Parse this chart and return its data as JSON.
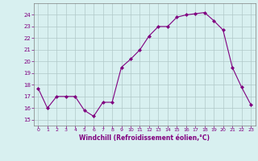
{
  "x": [
    0,
    1,
    2,
    3,
    4,
    5,
    6,
    7,
    8,
    9,
    10,
    11,
    12,
    13,
    14,
    15,
    16,
    17,
    18,
    19,
    20,
    21,
    22,
    23
  ],
  "y": [
    17.7,
    16.0,
    17.0,
    17.0,
    17.0,
    15.8,
    15.3,
    16.5,
    16.5,
    19.5,
    20.2,
    21.0,
    22.2,
    23.0,
    23.0,
    23.8,
    24.0,
    24.1,
    24.2,
    23.5,
    22.7,
    19.5,
    17.8,
    16.3
  ],
  "line_color": "#800080",
  "marker": "D",
  "marker_color": "#800080",
  "bg_color": "#d8f0f0",
  "grid_color": "#b0c8c8",
  "xlabel": "Windchill (Refroidissement éolien,°C)",
  "ylim": [
    14.5,
    25.0
  ],
  "xlim": [
    -0.5,
    23.5
  ],
  "yticks": [
    15,
    16,
    17,
    18,
    19,
    20,
    21,
    22,
    23,
    24
  ],
  "xticks": [
    0,
    1,
    2,
    3,
    4,
    5,
    6,
    7,
    8,
    9,
    10,
    11,
    12,
    13,
    14,
    15,
    16,
    17,
    18,
    19,
    20,
    21,
    22,
    23
  ],
  "tick_color": "#800080",
  "label_color": "#800080",
  "spine_color": "#808080"
}
